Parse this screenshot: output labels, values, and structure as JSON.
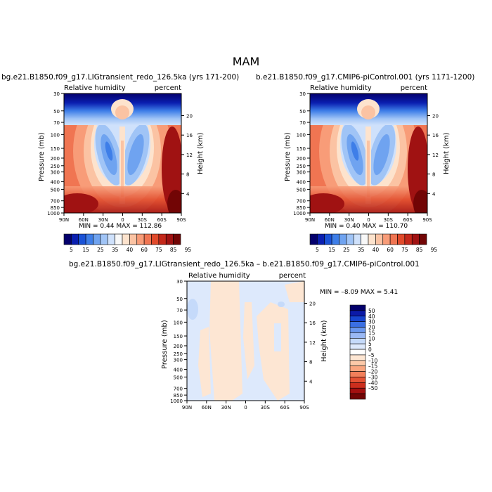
{
  "title": "MAM",
  "colors": {
    "seq": [
      "#04006d",
      "#0a1fb0",
      "#1a52d6",
      "#3e7ee8",
      "#6fa3f0",
      "#a0c4f6",
      "#cfe1fb",
      "#f8f8f8",
      "#fde3cd",
      "#fbc3a3",
      "#f89c78",
      "#f07552",
      "#e04a2b",
      "#c4281a",
      "#a01212",
      "#720505"
    ],
    "diff": [
      "#03006b",
      "#0b1aa8",
      "#1745cf",
      "#3a6fe3",
      "#6a97ee",
      "#9ab9f5",
      "#c5dafa",
      "#dde9fc",
      "#ffffff",
      "#fde6d3",
      "#fcc9a9",
      "#f9a57f",
      "#f27f5a",
      "#e55234",
      "#cc2e1d",
      "#a31010",
      "#720505"
    ]
  },
  "chart_data": [
    {
      "type": "heatmap",
      "title": "bg.e21.B1850.f09_g17.LIGtransient_redo_126.5ka (yrs 171-200)",
      "subtitle_left": "Relative humidity",
      "subtitle_right": "percent",
      "xlabel": "",
      "ylabel": "Pressure (mb)",
      "ylabel_right": "Height (km)",
      "x_ticks": [
        "90N",
        "60N",
        "30N",
        "0",
        "30S",
        "60S",
        "90S"
      ],
      "y_ticks": [
        "30",
        "50",
        "70",
        "100",
        "150",
        "200",
        "250",
        "300",
        "400",
        "500",
        "700",
        "850",
        "1000"
      ],
      "y_ticks_right": [
        "20",
        "16",
        "12",
        "8",
        "4"
      ],
      "stats": "MIN =    0.44   MAX = 112.86",
      "yscale": "log"
    },
    {
      "type": "heatmap",
      "title": "b.e21.B1850.f09_g17.CMIP6-piControl.001 (yrs 1171-1200)",
      "subtitle_left": "Relative humidity",
      "subtitle_right": "percent",
      "xlabel": "",
      "ylabel": "Pressure (mb)",
      "ylabel_right": "Height (km)",
      "x_ticks": [
        "90N",
        "60N",
        "30N",
        "0",
        "30S",
        "60S",
        "90S"
      ],
      "y_ticks": [
        "30",
        "50",
        "70",
        "100",
        "150",
        "200",
        "250",
        "300",
        "400",
        "500",
        "700",
        "850",
        "1000"
      ],
      "y_ticks_right": [
        "20",
        "16",
        "12",
        "8",
        "4"
      ],
      "stats": "MIN =    0.40   MAX = 110.70",
      "yscale": "log"
    },
    {
      "type": "heatmap",
      "title": "bg.e21.B1850.f09_g17.LIGtransient_redo_126.5ka – b.e21.B1850.f09_g17.CMIP6-piControl.001",
      "subtitle_left": "Relative humidity",
      "subtitle_right": "percent",
      "xlabel": "",
      "ylabel": "Pressure (mb)",
      "ylabel_right": "Height (km)",
      "x_ticks": [
        "90N",
        "60N",
        "30N",
        "0",
        "30S",
        "60S",
        "90S"
      ],
      "y_ticks": [
        "30",
        "50",
        "70",
        "100",
        "150",
        "200",
        "250",
        "300",
        "400",
        "500",
        "700",
        "850",
        "1000"
      ],
      "y_ticks_right": [
        "20",
        "16",
        "12",
        "8",
        "4"
      ],
      "stats": "MIN =   –8.09   MAX =    5.41",
      "yscale": "log"
    }
  ],
  "colorbar_top": [
    "5",
    "15",
    "25",
    "35",
    "40",
    "60",
    "75",
    "85",
    "95"
  ],
  "colorbar_diff": [
    "50",
    "40",
    "30",
    "20",
    "15",
    "10",
    "5",
    "0",
    "–5",
    "–10",
    "–15",
    "–20",
    "–30",
    "–40",
    "–50"
  ]
}
